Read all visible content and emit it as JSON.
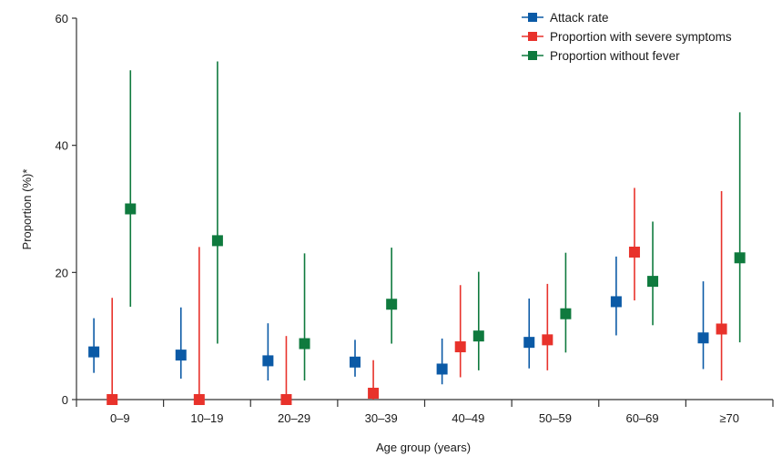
{
  "chart_data": {
    "type": "scatter",
    "title": "",
    "xlabel": "Age group (years)",
    "ylabel": "Proportion (%)*",
    "ylim": [
      0,
      60
    ],
    "yticks": [
      0,
      20,
      40,
      60
    ],
    "categories": [
      "0–9",
      "10–19",
      "20–29",
      "30–39",
      "40–49",
      "50–59",
      "60–69",
      "≥70"
    ],
    "legend_position": "top-right",
    "grid": false,
    "series": [
      {
        "name": "Attack rate",
        "color": "#0b5aa6",
        "values": [
          7.5,
          7.0,
          6.1,
          5.9,
          4.8,
          9.0,
          15.4,
          9.7
        ],
        "lower": [
          4.2,
          3.3,
          3.0,
          3.6,
          2.4,
          4.9,
          10.1,
          4.8
        ],
        "upper": [
          12.8,
          14.5,
          12.0,
          9.4,
          9.6,
          15.9,
          22.5,
          18.6
        ]
      },
      {
        "name": "Proportion with severe symptoms",
        "color": "#e8322b",
        "values": [
          0.0,
          0.0,
          0.0,
          1.0,
          8.3,
          9.4,
          23.2,
          11.1
        ],
        "lower": [
          0.0,
          0.0,
          0.0,
          0.0,
          3.5,
          4.6,
          15.6,
          3.0
        ],
        "upper": [
          16.0,
          24.0,
          10.0,
          6.2,
          18.0,
          18.2,
          33.3,
          32.8
        ]
      },
      {
        "name": "Proportion without fever",
        "color": "#0f7a3e",
        "values": [
          30.0,
          25.0,
          8.8,
          15.0,
          10.0,
          13.5,
          18.6,
          22.3
        ],
        "lower": [
          14.6,
          8.8,
          3.0,
          8.8,
          4.6,
          7.4,
          11.7,
          9.0
        ],
        "upper": [
          51.8,
          53.2,
          23.0,
          23.9,
          20.1,
          23.1,
          28.0,
          45.2
        ]
      }
    ]
  }
}
